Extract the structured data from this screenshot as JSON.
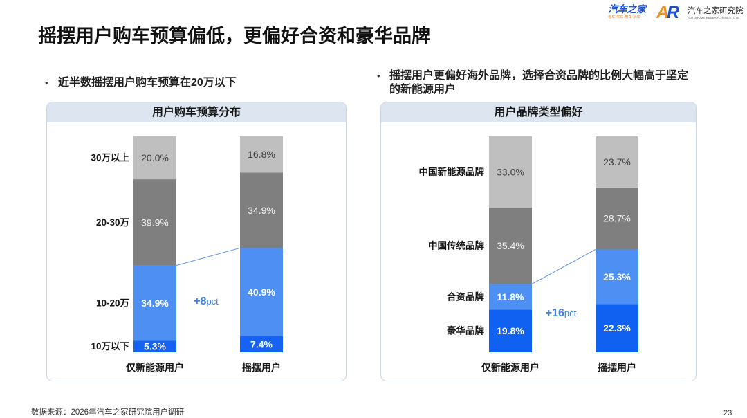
{
  "slide": {
    "title": "摇摆用户购车预算偏低，更偏好合资和豪华品牌",
    "source": "数据来源：2026年汽车之家研究院用户调研",
    "page_number": "23"
  },
  "logos": {
    "autohome": {
      "name": "汽车之家",
      "tagline": "看车·买车·用车·玩车",
      "color": "#1d4fd6",
      "tagline_color": "#f0781e"
    },
    "research": {
      "mark": [
        "A",
        "R"
      ],
      "mark_colors": [
        "#f2901e",
        "#1f4fd0"
      ],
      "name": "汽车之家研究院",
      "subtitle": "AUTOHOME RESEARCH INSTITUTE"
    }
  },
  "left_section": {
    "bullet_icon": "bullet-dot",
    "bullet": "近半数摇摆用户购车预算在20万以下"
  },
  "right_section": {
    "bullet_icon": "bullet-dot",
    "bullet": "摇摆用户更偏好海外品牌，选择合资品牌的比例大幅高于坚定的新能源用户"
  },
  "colors": {
    "panel_header_bg": "#dde6f0",
    "annotation": "#3b7fe8",
    "connector": "#5a8fe6"
  },
  "chart_data": [
    {
      "type": "bar",
      "stacked": true,
      "title": "用户购车预算分布",
      "categories": [
        "仅新能源用户",
        "摇摆用户"
      ],
      "ylim": [
        0,
        100
      ],
      "grid": false,
      "series": [
        {
          "name": "10万以下",
          "values": [
            5.3,
            7.4
          ],
          "labels": [
            "5.3%",
            "7.4%"
          ],
          "color": "#1662f3",
          "label_color": "#ffffff"
        },
        {
          "name": "10-20万",
          "values": [
            34.9,
            40.9
          ],
          "labels": [
            "34.9%",
            "40.9%"
          ],
          "color": "#4e8ff3",
          "label_color": "#ffffff"
        },
        {
          "name": "20-30万",
          "values": [
            39.9,
            34.9
          ],
          "labels": [
            "39.9%",
            "34.9%"
          ],
          "color": "#7f7f7f",
          "label_color": "#f2f2f2"
        },
        {
          "name": "30万以上",
          "values": [
            20.0,
            16.8
          ],
          "labels": [
            "20.0%",
            "16.8%"
          ],
          "color": "#bfbfbf",
          "label_color": "#404040"
        }
      ],
      "annotation": {
        "value": "+8",
        "unit": "pct"
      }
    },
    {
      "type": "bar",
      "stacked": true,
      "title": "用户品牌类型偏好",
      "categories": [
        "仅新能源用户",
        "摇摆用户"
      ],
      "ylim": [
        0,
        100
      ],
      "grid": false,
      "series": [
        {
          "name": "豪华品牌",
          "values": [
            19.8,
            22.3
          ],
          "labels": [
            "19.8%",
            "22.3%"
          ],
          "color": "#1060f2",
          "label_color": "#ffffff"
        },
        {
          "name": "合资品牌",
          "values": [
            11.8,
            25.3
          ],
          "labels": [
            "11.8%",
            "25.3%"
          ],
          "color": "#4e8ff3",
          "label_color": "#ffffff"
        },
        {
          "name": "中国传统品牌",
          "values": [
            35.4,
            28.7
          ],
          "labels": [
            "35.4%",
            "28.7%"
          ],
          "color": "#7f7f7f",
          "label_color": "#f2f2f2"
        },
        {
          "name": "中国新能源品牌",
          "values": [
            33.0,
            23.7
          ],
          "labels": [
            "33.0%",
            "23.7%"
          ],
          "color": "#bfbfbf",
          "label_color": "#404040"
        }
      ],
      "annotation": {
        "value": "+16",
        "unit": "pct"
      }
    }
  ]
}
